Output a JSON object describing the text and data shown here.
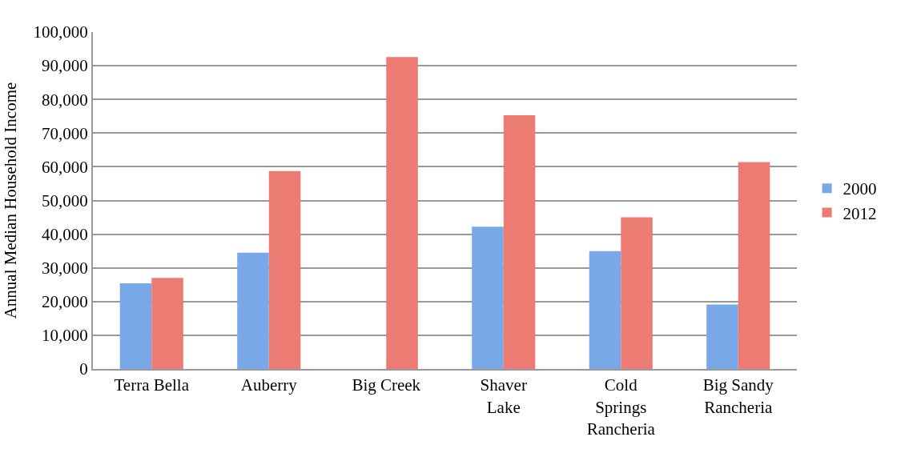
{
  "chart_data": {
    "type": "bar",
    "ylabel": "Annual Median Household Income",
    "categories": [
      "Terra Bella",
      "Auberry",
      "Big Creek",
      "Shaver\nLake",
      "Cold\nSprings\nRancheria",
      "Big Sandy\nRancheria"
    ],
    "series": [
      {
        "name": "2000",
        "color": "#78a8e8",
        "values": [
          25400,
          34500,
          null,
          42200,
          35000,
          19100
        ]
      },
      {
        "name": "2012",
        "color": "#ec7b73",
        "values": [
          27000,
          58700,
          92600,
          75300,
          45000,
          61400
        ]
      }
    ],
    "ylim": [
      0,
      100000
    ],
    "yticks": [
      {
        "value": 0,
        "label": "0"
      },
      {
        "value": 10000,
        "label": "10,000"
      },
      {
        "value": 20000,
        "label": "20,000"
      },
      {
        "value": 30000,
        "label": "30,000"
      },
      {
        "value": 40000,
        "label": "40,000"
      },
      {
        "value": 50000,
        "label": "50,000"
      },
      {
        "value": 60000,
        "label": "60,000"
      },
      {
        "value": 70000,
        "label": "70,000"
      },
      {
        "value": 80000,
        "label": "80,000"
      },
      {
        "value": 90000,
        "label": "90,000"
      },
      {
        "value": 100000,
        "label": "100,000"
      }
    ],
    "grid": "y",
    "legend": "right"
  }
}
